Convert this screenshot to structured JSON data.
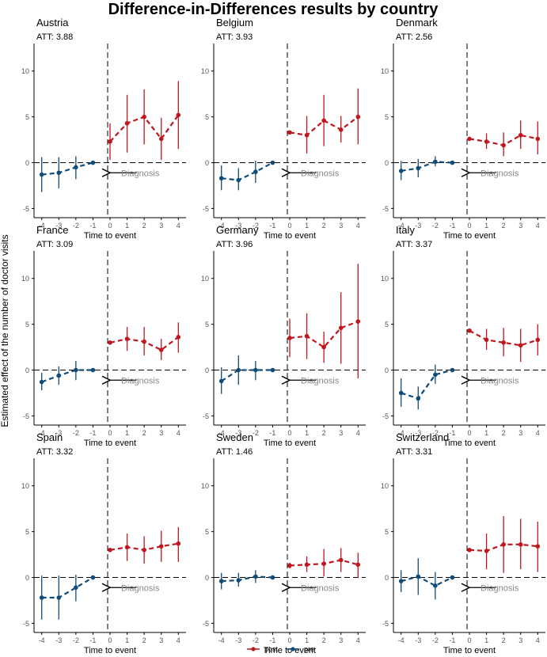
{
  "figure": {
    "title": "Difference-in-Differences results by country",
    "ylabel": "Estimated effect of the number of doctor visits",
    "xlabel": "Time to event",
    "annotation": "Diagnosis",
    "att_prefix": "ATT: "
  },
  "legend": {
    "items": [
      {
        "name": "post",
        "color": "#c0161e"
      },
      {
        "name": "pre",
        "color": "#0f4c7a"
      }
    ]
  },
  "colors": {
    "post": "#c0161e",
    "pre": "#0f4c7a",
    "axis": "#000000",
    "annotation": "#888888"
  },
  "chart_data": {
    "type": "line",
    "x_ticks": [
      -4,
      -3,
      -2,
      -1,
      0,
      1,
      2,
      3,
      4
    ],
    "y_ticks": [
      -5,
      0,
      5,
      10
    ],
    "ylim": [
      -6,
      13
    ],
    "panels": [
      {
        "country": "Austria",
        "att": "3.88",
        "pre": [
          [
            -4,
            -1.3,
            -3.2,
            0.6
          ],
          [
            -3,
            -1.1,
            -2.8,
            0.6
          ],
          [
            -2,
            -0.5,
            -1.8,
            0.7
          ],
          [
            -1,
            0,
            0,
            0
          ]
        ],
        "post": [
          [
            0,
            2.3,
            0.3,
            4.3
          ],
          [
            1,
            4.3,
            1.1,
            7.4
          ],
          [
            2,
            5.0,
            2.0,
            8.0
          ],
          [
            3,
            2.6,
            0.3,
            4.9
          ],
          [
            4,
            5.2,
            1.5,
            8.9
          ]
        ]
      },
      {
        "country": "Belgium",
        "att": "3.93",
        "pre": [
          [
            -4,
            -1.7,
            -3.0,
            -0.3
          ],
          [
            -3,
            -1.9,
            -3.0,
            -0.6
          ],
          [
            -2,
            -1.0,
            -2.2,
            0.2
          ],
          [
            -1,
            0,
            0,
            0
          ]
        ],
        "post": [
          [
            0,
            3.3,
            3.1,
            3.5
          ],
          [
            1,
            3.0,
            1.0,
            5.1
          ],
          [
            2,
            4.6,
            1.8,
            7.4
          ],
          [
            3,
            3.6,
            2.2,
            5.1
          ],
          [
            4,
            5.0,
            2.0,
            8.1
          ]
        ]
      },
      {
        "country": "Denmark",
        "att": "2.56",
        "pre": [
          [
            -4,
            -0.9,
            -1.9,
            0.2
          ],
          [
            -3,
            -0.6,
            -1.6,
            0.4
          ],
          [
            -2,
            0.1,
            -0.4,
            0.7
          ],
          [
            -1,
            0,
            0,
            0
          ]
        ],
        "post": [
          [
            0,
            2.6,
            2.4,
            2.8
          ],
          [
            1,
            2.3,
            1.5,
            3.2
          ],
          [
            2,
            1.9,
            0.7,
            3.3
          ],
          [
            3,
            3.0,
            1.5,
            4.6
          ],
          [
            4,
            2.6,
            0.9,
            4.5
          ]
        ]
      },
      {
        "country": "France",
        "att": "3.09",
        "pre": [
          [
            -4,
            -1.3,
            -2.2,
            -0.3
          ],
          [
            -3,
            -0.6,
            -1.6,
            0.4
          ],
          [
            -2,
            0,
            -1.1,
            1.0
          ],
          [
            -1,
            0,
            0,
            0
          ]
        ],
        "post": [
          [
            0,
            3.0,
            2.8,
            3.2
          ],
          [
            1,
            3.4,
            2.1,
            4.7
          ],
          [
            2,
            3.1,
            1.6,
            4.7
          ],
          [
            3,
            2.2,
            1.1,
            3.4
          ],
          [
            4,
            3.6,
            1.9,
            5.2
          ]
        ]
      },
      {
        "country": "Germany",
        "att": "3.96",
        "pre": [
          [
            -4,
            -1.2,
            -2.6,
            0.3
          ],
          [
            -3,
            0,
            -1.6,
            1.6
          ],
          [
            -2,
            0,
            -1.1,
            1.0
          ],
          [
            -1,
            0,
            0,
            0
          ]
        ],
        "post": [
          [
            0,
            3.5,
            1.4,
            5.6
          ],
          [
            1,
            3.7,
            1.2,
            6.2
          ],
          [
            2,
            2.5,
            0.8,
            4.2
          ],
          [
            3,
            4.6,
            0.7,
            8.5
          ],
          [
            4,
            5.3,
            -0.9,
            11.6
          ]
        ]
      },
      {
        "country": "Italy",
        "att": "3.37",
        "pre": [
          [
            -4,
            -2.5,
            -4.0,
            -0.9
          ],
          [
            -3,
            -3.1,
            -4.3,
            -1.8
          ],
          [
            -2,
            -0.5,
            -1.5,
            0.6
          ],
          [
            -1,
            0,
            0,
            0
          ]
        ],
        "post": [
          [
            0,
            4.3,
            4.1,
            4.5
          ],
          [
            1,
            3.3,
            2.2,
            4.5
          ],
          [
            2,
            3.0,
            1.5,
            4.6
          ],
          [
            3,
            2.7,
            0.9,
            4.5
          ],
          [
            4,
            3.3,
            1.6,
            5.0
          ]
        ]
      },
      {
        "country": "Spain",
        "att": "3.32",
        "pre": [
          [
            -4,
            -2.2,
            -4.6,
            0.2
          ],
          [
            -3,
            -2.2,
            -4.6,
            0.2
          ],
          [
            -2,
            -1.1,
            -2.6,
            0.3
          ],
          [
            -1,
            0,
            0,
            0
          ]
        ],
        "post": [
          [
            0,
            3.0,
            2.8,
            3.2
          ],
          [
            1,
            3.3,
            1.8,
            4.8
          ],
          [
            2,
            3.0,
            1.5,
            4.5
          ],
          [
            3,
            3.4,
            1.7,
            5.1
          ],
          [
            4,
            3.7,
            1.7,
            5.5
          ]
        ]
      },
      {
        "country": "Sweden",
        "att": "1.46",
        "pre": [
          [
            -4,
            -0.4,
            -1.3,
            0.5
          ],
          [
            -3,
            -0.3,
            -1.0,
            0.5
          ],
          [
            -2,
            0.1,
            -0.6,
            0.8
          ],
          [
            -1,
            0,
            0,
            0
          ]
        ],
        "post": [
          [
            0,
            1.3,
            1.0,
            1.6
          ],
          [
            1,
            1.4,
            0.6,
            2.3
          ],
          [
            2,
            1.5,
            0.1,
            3.1
          ],
          [
            3,
            1.9,
            0.6,
            3.2
          ],
          [
            4,
            1.4,
            0.0,
            2.7
          ]
        ]
      },
      {
        "country": "Switzerland",
        "att": "3.31",
        "pre": [
          [
            -4,
            -0.4,
            -1.6,
            0.8
          ],
          [
            -3,
            0.1,
            -1.9,
            2.1
          ],
          [
            -2,
            -0.9,
            -2.4,
            0.6
          ],
          [
            -1,
            0,
            0,
            0
          ]
        ],
        "post": [
          [
            0,
            3.0,
            2.8,
            3.2
          ],
          [
            1,
            2.9,
            0.9,
            4.8
          ],
          [
            2,
            3.6,
            0.5,
            6.7
          ],
          [
            3,
            3.6,
            0.9,
            6.4
          ],
          [
            4,
            3.4,
            0.6,
            6.1
          ]
        ]
      }
    ]
  }
}
